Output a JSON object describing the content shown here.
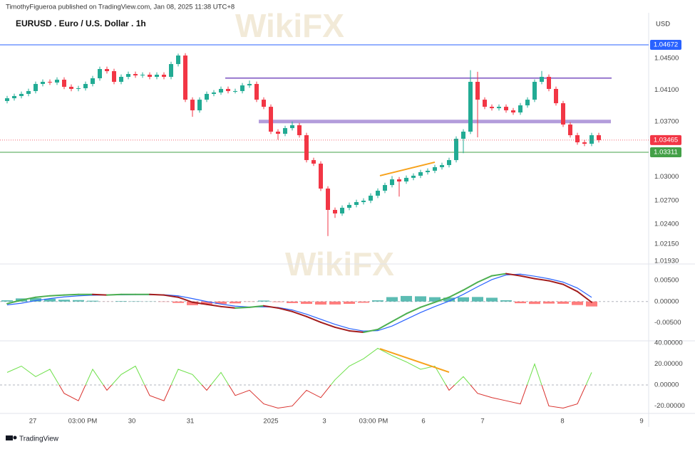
{
  "header": "TimothyFigueroa published on TradingView.com, Jan 08, 2025 11:38 UTC+8",
  "footer": "TradingView",
  "watermark": "WikiFX",
  "chart_data": [
    {
      "type": "candlestick",
      "title": "EURUSD . Euro / U.S. Dollar . 1h",
      "currency": "USD",
      "up_color": "#22ab94",
      "down_color": "#f23645",
      "x": [
        0,
        1,
        2,
        3,
        4,
        5,
        6,
        7,
        8,
        9,
        10,
        11,
        12,
        13,
        14,
        15,
        16,
        17,
        18,
        19,
        20,
        21,
        22,
        23,
        24,
        25,
        26,
        27,
        28,
        29,
        30,
        31,
        32,
        33,
        34,
        35,
        36,
        37,
        38,
        39,
        40,
        41,
        42,
        43,
        44,
        45,
        46,
        47,
        48,
        49,
        50,
        51,
        52,
        53,
        54,
        55,
        56,
        57,
        58,
        59,
        60,
        61,
        62,
        63,
        64,
        65,
        66,
        67,
        68,
        69,
        70,
        71,
        72,
        73,
        74,
        75,
        76,
        77,
        78,
        79,
        80,
        81,
        82,
        83
      ],
      "open": [
        1.0396,
        1.03995,
        1.04023,
        1.0405,
        1.04086,
        1.04176,
        1.04203,
        1.04194,
        1.0423,
        1.0414,
        1.04113,
        1.04122,
        1.04176,
        1.04248,
        1.04365,
        1.04338,
        1.04203,
        1.04266,
        1.04302,
        1.04284,
        1.04293,
        1.04266,
        1.04293,
        1.04266,
        1.04428,
        1.04536,
        1.03977,
        1.03842,
        1.03977,
        1.0405,
        1.04068,
        1.04113,
        1.04086,
        1.04086,
        1.04158,
        1.04176,
        1.03977,
        1.03887,
        1.03572,
        1.03545,
        1.03617,
        1.03653,
        1.03527,
        1.03212,
        1.03167,
        1.02851,
        1.02581,
        1.02536,
        1.02608,
        1.02644,
        1.0268,
        1.02698,
        1.02761,
        1.02824,
        1.02896,
        1.02968,
        1.02941,
        1.02987,
        1.03014,
        1.03059,
        1.03077,
        1.03122,
        1.03149,
        1.03212,
        1.03482,
        1.03572,
        1.04203,
        1.03977,
        1.03887,
        1.03869,
        1.03887,
        1.03842,
        1.03815,
        1.03905,
        1.03977,
        1.04203,
        1.04266,
        1.04113,
        1.03932,
        1.03662,
        1.03527,
        1.03437,
        1.03419,
        1.03527
      ],
      "high": [
        1.04025,
        1.04053,
        1.0408,
        1.04116,
        1.04206,
        1.04233,
        1.04233,
        1.0426,
        1.0426,
        1.0417,
        1.04152,
        1.04206,
        1.04278,
        1.04395,
        1.04395,
        1.04368,
        1.04296,
        1.04332,
        1.04332,
        1.04323,
        1.04323,
        1.04323,
        1.04323,
        1.04458,
        1.0456,
        1.04566,
        1.04007,
        1.04007,
        1.0408,
        1.04098,
        1.04143,
        1.04143,
        1.04116,
        1.04188,
        1.0422,
        1.04206,
        1.04007,
        1.03917,
        1.03602,
        1.03647,
        1.037,
        1.03683,
        1.03557,
        1.03242,
        1.03197,
        1.02881,
        1.02611,
        1.02638,
        1.02674,
        1.0271,
        1.02728,
        1.02791,
        1.02854,
        1.02926,
        1.0301,
        1.02998,
        1.03017,
        1.03044,
        1.03089,
        1.03107,
        1.03152,
        1.03179,
        1.03242,
        1.03512,
        1.03602,
        1.0435,
        1.0433,
        1.04007,
        1.03917,
        1.03917,
        1.03917,
        1.03872,
        1.03935,
        1.04007,
        1.04233,
        1.0434,
        1.04296,
        1.04143,
        1.03962,
        1.03692,
        1.03557,
        1.03467,
        1.03557,
        1.03557
      ],
      "low": [
        1.0393,
        1.03965,
        1.03993,
        1.0402,
        1.04056,
        1.04146,
        1.04164,
        1.04164,
        1.0411,
        1.04083,
        1.04083,
        1.04092,
        1.04146,
        1.04218,
        1.04308,
        1.04173,
        1.04173,
        1.04236,
        1.04254,
        1.04254,
        1.04236,
        1.04236,
        1.04236,
        1.04236,
        1.04398,
        1.03947,
        1.0376,
        1.03812,
        1.03947,
        1.0402,
        1.04038,
        1.04056,
        1.04056,
        1.04056,
        1.04128,
        1.03947,
        1.03857,
        1.03542,
        1.0347,
        1.03515,
        1.03587,
        1.03497,
        1.03182,
        1.03137,
        1.02821,
        1.0225,
        1.0248,
        1.02506,
        1.02578,
        1.02614,
        1.0265,
        1.02668,
        1.02731,
        1.02794,
        1.02866,
        1.0275,
        1.02911,
        1.02957,
        1.02984,
        1.03029,
        1.03047,
        1.03092,
        1.03119,
        1.03182,
        1.033,
        1.03542,
        1.035,
        1.03857,
        1.03839,
        1.03839,
        1.03812,
        1.03785,
        1.03785,
        1.03875,
        1.03947,
        1.04173,
        1.04083,
        1.03902,
        1.03632,
        1.03497,
        1.03407,
        1.03389,
        1.03389,
        1.03435
      ],
      "close": [
        1.03995,
        1.04023,
        1.0405,
        1.04086,
        1.04176,
        1.04203,
        1.04194,
        1.0423,
        1.0414,
        1.04113,
        1.04122,
        1.04176,
        1.04248,
        1.04365,
        1.04338,
        1.04203,
        1.04266,
        1.04302,
        1.04284,
        1.04293,
        1.04266,
        1.04293,
        1.04266,
        1.04428,
        1.04536,
        1.03977,
        1.03842,
        1.03977,
        1.0405,
        1.04068,
        1.04113,
        1.04086,
        1.04086,
        1.04158,
        1.04176,
        1.03977,
        1.03887,
        1.03572,
        1.03545,
        1.03617,
        1.03653,
        1.03527,
        1.03212,
        1.03167,
        1.02851,
        1.02581,
        1.02536,
        1.02608,
        1.02644,
        1.0268,
        1.02698,
        1.02761,
        1.02824,
        1.02896,
        1.02968,
        1.02941,
        1.02987,
        1.03014,
        1.03059,
        1.03077,
        1.03122,
        1.03149,
        1.03212,
        1.03482,
        1.03572,
        1.04203,
        1.03977,
        1.03887,
        1.03869,
        1.03887,
        1.03842,
        1.03815,
        1.03905,
        1.03977,
        1.04203,
        1.04266,
        1.04113,
        1.03932,
        1.03662,
        1.03527,
        1.03437,
        1.03419,
        1.03527,
        1.03465
      ],
      "xlim": [
        -0.2,
        90
      ],
      "xticks": [
        {
          "value": 3.6,
          "label": "27"
        },
        {
          "value": 10.6,
          "label": "03:00 PM"
        },
        {
          "value": 17.5,
          "label": "30"
        },
        {
          "value": 25.7,
          "label": "31"
        },
        {
          "value": 37,
          "label": "2025"
        },
        {
          "value": 44.5,
          "label": "3"
        },
        {
          "value": 51.4,
          "label": "03:00 PM"
        },
        {
          "value": 58.4,
          "label": "6"
        },
        {
          "value": 66.7,
          "label": "7"
        },
        {
          "value": 77.9,
          "label": "8"
        },
        {
          "value": 89,
          "label": "9"
        }
      ],
      "ylim": [
        1.01905,
        1.05059
      ],
      "yticks": [
        {
          "value": 1.045,
          "label": "1.04500"
        },
        {
          "value": 1.041,
          "label": "1.04100"
        },
        {
          "value": 1.037,
          "label": "1.03700"
        },
        {
          "value": 1.03,
          "label": "1.03000"
        },
        {
          "value": 1.027,
          "label": "1.02700"
        },
        {
          "value": 1.024,
          "label": "1.02400"
        },
        {
          "value": 1.0215,
          "label": "1.02150"
        },
        {
          "value": 1.0193,
          "label": "1.01930"
        }
      ],
      "hlines": [
        {
          "value": 1.04672,
          "color": "#2962ff"
        },
        {
          "value": 1.03311,
          "color": "#43a047"
        }
      ],
      "levels": [
        {
          "from": 30.6,
          "to": 84.8,
          "value": 1.0425,
          "color": "#9575cd",
          "width": 2
        },
        {
          "from": 35.3,
          "to": 84.7,
          "value": 1.037,
          "color": "#b39ddb",
          "width": 5
        }
      ],
      "trendline": {
        "x": [
          52.3,
          60
        ],
        "y": [
          1.03014,
          1.03185
        ],
        "color": "#f7a21b"
      }
    },
    {
      "type": "macd",
      "up_color": "#4caf50",
      "down_color": "#a21c1c",
      "signal_color": "#2962ff",
      "hist_up_color": "#26a69a",
      "hist_down_color": "#ff5252",
      "x": [
        0,
        2,
        4,
        6,
        8,
        10,
        12,
        14,
        16,
        18,
        20,
        22,
        24,
        26,
        28,
        30,
        32,
        34,
        36,
        38,
        40,
        42,
        44,
        46,
        48,
        50,
        52,
        54,
        56,
        58,
        60,
        62,
        64,
        66,
        68,
        70,
        72,
        74,
        76,
        78,
        80,
        82
      ],
      "macd": [
        -0.00051,
        0.00034,
        0.00102,
        0.00136,
        0.00153,
        0.00169,
        0.00169,
        0.00153,
        0.00169,
        0.00169,
        0.00169,
        0.00153,
        0.00102,
        -0.00017,
        -0.00068,
        -0.00119,
        -0.00153,
        -0.00136,
        -0.00102,
        -0.00153,
        -0.00237,
        -0.00356,
        -0.00492,
        -0.0061,
        -0.00695,
        -0.00729,
        -0.00661,
        -0.00475,
        -0.00288,
        -0.00136,
        -0.00017,
        0.00102,
        0.00271,
        0.00458,
        0.0061,
        0.00661,
        0.0061,
        0.00542,
        0.00492,
        0.00407,
        0.00237,
        -0.00017
      ],
      "signal": [
        -0.0008,
        -0.0004,
        0.0002,
        0.0007,
        0.0011,
        0.00135,
        0.0015,
        0.00155,
        0.00158,
        0.00162,
        0.00165,
        0.0016,
        0.00135,
        0.0007,
        0.0,
        -0.0006,
        -0.0011,
        -0.0013,
        -0.00125,
        -0.0014,
        -0.002,
        -0.003,
        -0.0042,
        -0.0054,
        -0.0064,
        -0.007,
        -0.0069,
        -0.0058,
        -0.0042,
        -0.0026,
        -0.0012,
        0.0001,
        0.0017,
        0.0035,
        0.0052,
        0.0063,
        0.0065,
        0.006,
        0.0054,
        0.0046,
        0.0032,
        0.001
      ],
      "histogram": [
        0.00029,
        0.00074,
        0.00082,
        0.00066,
        0.00043,
        0.00034,
        0.00019,
        -2e-05,
        0.00011,
        7e-05,
        4e-05,
        -7e-05,
        -0.00033,
        -0.00087,
        -0.00068,
        -0.00059,
        -0.00043,
        -6e-05,
        0.00023,
        -0.00013,
        -0.00037,
        -0.00056,
        -0.00072,
        -0.0007,
        -0.00055,
        -0.00029,
        0.00029,
        0.00105,
        0.00132,
        0.00124,
        0.00103,
        0.00092,
        0.00101,
        0.00108,
        0.0009,
        0.00031,
        -0.0004,
        -0.00058,
        -0.00048,
        -0.00053,
        -0.00083,
        -0.00117
      ],
      "ylim": [
        -0.00915,
        0.00873
      ],
      "yticks": [
        {
          "value": 0.005,
          "label": "0.00500"
        },
        {
          "value": 0,
          "label": "0.00000"
        },
        {
          "value": -0.005,
          "label": "-0.00500"
        }
      ]
    },
    {
      "type": "oscillator",
      "up_color": "#6ee04a",
      "down_color": "#d9302c",
      "x": [
        0,
        2,
        4,
        6,
        8,
        10,
        12,
        14,
        16,
        18,
        20,
        22,
        24,
        26,
        28,
        30,
        32,
        34,
        36,
        38,
        40,
        42,
        44,
        46,
        48,
        50,
        52,
        54,
        56,
        58,
        60,
        62,
        64,
        66,
        68,
        70,
        72,
        74,
        76,
        78,
        80,
        82
      ],
      "values": [
        12,
        18,
        8,
        15,
        -8,
        -15,
        15,
        -5,
        10,
        18,
        -10,
        -15,
        15,
        10,
        -5,
        12,
        -10,
        -5,
        -18,
        -22,
        -20,
        -5,
        -12,
        5,
        18,
        25,
        35,
        28,
        22,
        15,
        18,
        -5,
        8,
        -8,
        -12,
        -15,
        -18,
        20,
        -20,
        -22,
        -18,
        12
      ],
      "ylim": [
        -26.4,
        41.4
      ],
      "yticks": [
        {
          "value": 40,
          "label": "40.00000"
        },
        {
          "value": 20,
          "label": "20.00000"
        },
        {
          "value": 0,
          "label": "0.00000"
        },
        {
          "value": -20,
          "label": "-20.00000"
        }
      ],
      "trendline": {
        "x": [
          52.3,
          62
        ],
        "y": [
          34.6,
          12.2
        ],
        "color": "#f7a21b"
      }
    }
  ]
}
